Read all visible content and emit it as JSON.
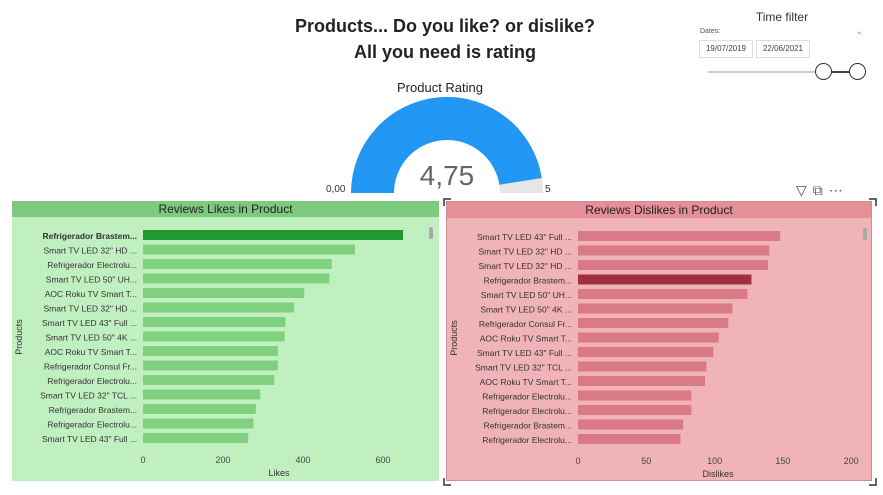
{
  "header": {
    "title_line1": "Products... Do you like? or dislike?",
    "title_line2": "All you need is rating"
  },
  "time_filter": {
    "title": "Time filter",
    "label": "Dates:",
    "start_date": "19/07/2019",
    "end_date": "22/06/2021"
  },
  "gauge": {
    "title": "Product Rating",
    "value": "4,75",
    "value_num": 4.75,
    "min": "0,00",
    "max": "5",
    "color": "#2196F3"
  },
  "icons": [
    "filter-icon",
    "focus-mode-icon",
    "more-options-icon"
  ],
  "chart_data": [
    {
      "type": "bar",
      "title": "Reviews Likes in Product",
      "xlabel": "Likes",
      "ylabel": "Products",
      "xlim": [
        0,
        680
      ],
      "xticks": [
        0,
        200,
        400,
        600
      ],
      "bar_color": "#7fd07f",
      "highlight_color": "#1f9a2f",
      "highlight_index": 0,
      "categories": [
        "Refrigerador Brastem...",
        "Smart TV LED 32\" HD ...",
        "Refrigerador Electrolu...",
        "Smart TV LED 50\" UH...",
        "AOC Roku TV Smart T...",
        "Smart TV LED 32\" HD ...",
        "Smart TV LED 43\" Full ...",
        "Smart TV LED 50\" 4K ...",
        "AOC Roku TV Smart T...",
        "Refrigerador Consul Fr...",
        "Refrigerador Electrolu...",
        "Smart TV LED 32\" TCL ...",
        "Refrigerador Brastem...",
        "Refrigerador Electrolu...",
        "Smart TV LED 43\" Full ..."
      ],
      "values": [
        650,
        530,
        472,
        466,
        403,
        378,
        356,
        354,
        337,
        337,
        328,
        293,
        282,
        276,
        263
      ]
    },
    {
      "type": "bar",
      "title": "Reviews Dislikes in Product",
      "xlabel": "Dislikes",
      "ylabel": "Products",
      "xlim": [
        0,
        205
      ],
      "xticks": [
        0,
        50,
        100,
        150,
        200
      ],
      "bar_color": "#d97a86",
      "highlight_color": "#a1303f",
      "highlight_index": 3,
      "categories": [
        "Smart TV LED 43\" Full ...",
        "Smart TV LED 32\" HD ...",
        "Smart TV LED 32\" HD ...",
        "Refrigerador Brastem...",
        "Smart TV LED 50\" UH...",
        "Smart TV LED 50\" 4K ...",
        "Refrigerador Consul Fr...",
        "AOC Roku TV Smart T...",
        "Smart TV LED 43\" Full ...",
        "Smart TV LED 32\" TCL ...",
        "AOC Roku TV Smart T...",
        "Refrigerador Electrolu...",
        "Refrigerador Electrolu...",
        "Refrigerador Brastem...",
        "Refrigerador Electrolu..."
      ],
      "values": [
        148,
        140,
        139,
        127,
        124,
        113,
        110,
        103,
        99,
        94,
        93,
        83,
        83,
        77,
        75
      ]
    }
  ]
}
